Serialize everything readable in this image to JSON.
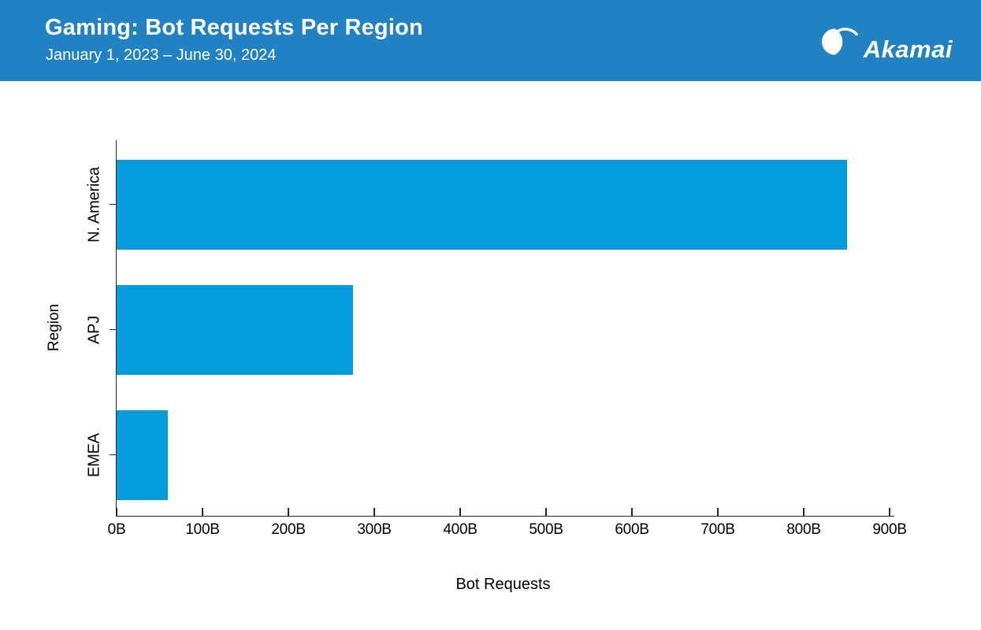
{
  "header": {
    "title": "Gaming: Bot Requests Per Region",
    "date_range": "January 1, 2023 – June 30, 2024",
    "logo_text": "Akamai",
    "background_color": "#2182c3",
    "text_color": "#ffffff"
  },
  "chart_data": {
    "type": "bar",
    "orientation": "horizontal",
    "title": "Gaming: Bot Requests Per Region",
    "subtitle": "January 1, 2023 – June 30, 2024",
    "categories": [
      "N. America",
      "APJ",
      "EMEA"
    ],
    "values": [
      850,
      275,
      60
    ],
    "value_unit": "B",
    "value_labels": [
      "850B",
      "275B",
      "60B"
    ],
    "xlabel": "Bot Requests",
    "ylabel": "Region",
    "xlim": [
      0,
      900
    ],
    "x_tick_values": [
      0,
      100,
      200,
      300,
      400,
      500,
      600,
      700,
      800,
      900
    ],
    "x_tick_labels": [
      "0B",
      "100B",
      "200B",
      "300B",
      "400B",
      "500B",
      "600B",
      "700B",
      "800B",
      "900B"
    ],
    "bar_color": "#059cdd",
    "axis_color": "#262626",
    "grid": false,
    "legend": false
  }
}
